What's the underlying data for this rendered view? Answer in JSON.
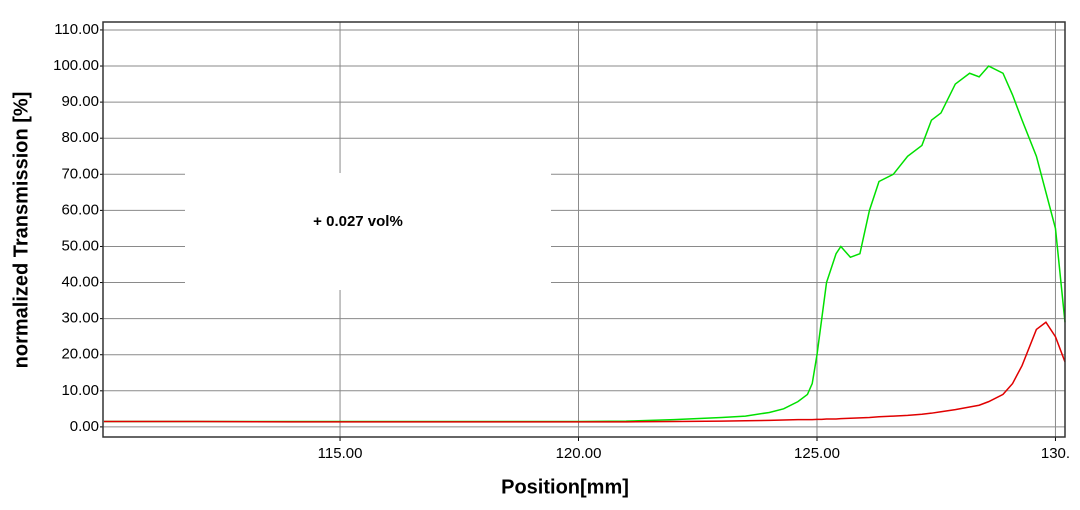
{
  "chart_data": {
    "type": "line",
    "xlabel": "Position[mm]",
    "ylabel": "normalized Transmission [%]",
    "annotation": "+ 0.027 vol%",
    "grid": true,
    "xlim": [
      110.03,
      130.2
    ],
    "ylim": [
      -2.8,
      112.2
    ],
    "xticks": [
      {
        "value": 115,
        "label": "115.00"
      },
      {
        "value": 120,
        "label": "120.00"
      },
      {
        "value": 125,
        "label": "125.00"
      },
      {
        "value": 130,
        "label": "130."
      }
    ],
    "yticks": [
      {
        "value": 0,
        "label": "0.00"
      },
      {
        "value": 10,
        "label": "10.00"
      },
      {
        "value": 20,
        "label": "20.00"
      },
      {
        "value": 30,
        "label": "30.00"
      },
      {
        "value": 40,
        "label": "40.00"
      },
      {
        "value": 50,
        "label": "50.00"
      },
      {
        "value": 60,
        "label": "60.00"
      },
      {
        "value": 70,
        "label": "70.00"
      },
      {
        "value": 80,
        "label": "80.00"
      },
      {
        "value": 90,
        "label": "90.00"
      },
      {
        "value": 100,
        "label": "100.00"
      },
      {
        "value": 110,
        "label": "110.00"
      }
    ],
    "x": [
      110.05,
      112,
      114,
      116,
      118,
      120,
      121,
      122,
      123,
      123.5,
      124,
      124.3,
      124.6,
      124.8,
      124.9,
      125.0,
      125.1,
      125.2,
      125.4,
      125.5,
      125.7,
      125.9,
      126.1,
      126.3,
      126.6,
      126.9,
      127.2,
      127.4,
      127.6,
      127.9,
      128.2,
      128.4,
      128.6,
      128.9,
      129.1,
      129.3,
      129.6,
      129.8,
      130.0,
      130.2
    ],
    "series": [
      {
        "name": "green",
        "color": "#00e000",
        "values": [
          1.5,
          1.5,
          1.5,
          1.5,
          1.5,
          1.5,
          1.6,
          2,
          2.6,
          3,
          4,
          5,
          7,
          9,
          12,
          20,
          30,
          40,
          48,
          50,
          47,
          48,
          60,
          68,
          70,
          75,
          78,
          85,
          87,
          95,
          98,
          97,
          100,
          98,
          92,
          85,
          75,
          65,
          55,
          29
        ]
      },
      {
        "name": "red",
        "color": "#e00000",
        "values": [
          1.5,
          1.5,
          1.4,
          1.4,
          1.4,
          1.4,
          1.4,
          1.5,
          1.6,
          1.7,
          1.8,
          1.9,
          2,
          2,
          2,
          2.1,
          2.1,
          2.2,
          2.2,
          2.3,
          2.4,
          2.5,
          2.6,
          2.8,
          3,
          3.2,
          3.5,
          3.8,
          4.2,
          4.8,
          5.5,
          6,
          7,
          9,
          12,
          17,
          27,
          29,
          25,
          18
        ]
      }
    ]
  }
}
